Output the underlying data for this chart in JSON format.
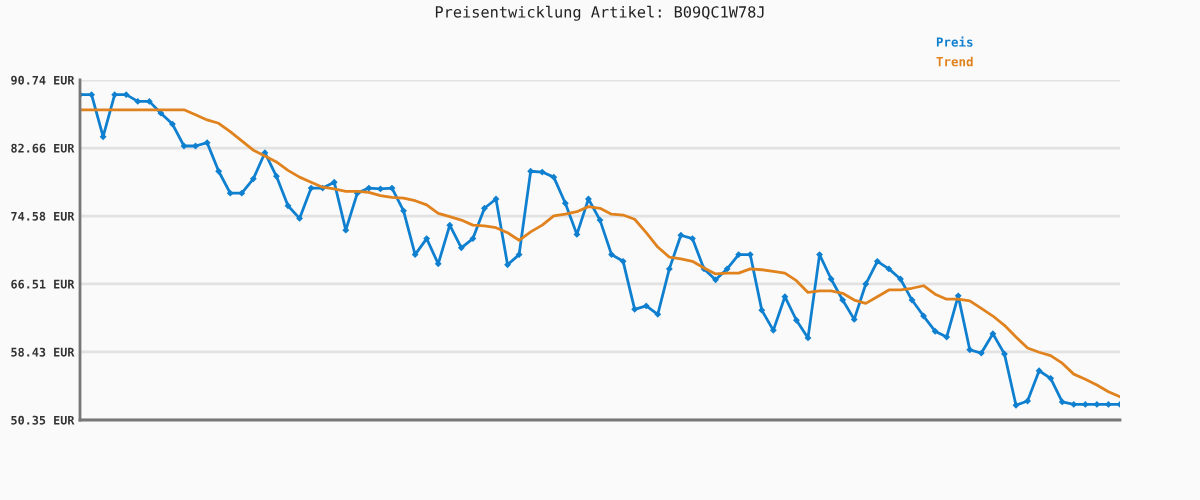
{
  "chart_data": {
    "type": "line",
    "title": "Preisentwicklung Artikel: B09QC1W78J",
    "categories": [
      null,
      null,
      null,
      null,
      null,
      null,
      null,
      null,
      null,
      null,
      null,
      null,
      null,
      null,
      null,
      null,
      null,
      null,
      null,
      null,
      null,
      null,
      null,
      null,
      null,
      null,
      null,
      null,
      null,
      null,
      null,
      null,
      null,
      null,
      null,
      null,
      null,
      null,
      null,
      null,
      null,
      null,
      null,
      null,
      null,
      null,
      null,
      null,
      null,
      null,
      null,
      null,
      null,
      null,
      null,
      null,
      null,
      null,
      null,
      null,
      null,
      null,
      null,
      null,
      null,
      null,
      null,
      null,
      null,
      null,
      null,
      null,
      null,
      null,
      null,
      null,
      null,
      null,
      null,
      null,
      null,
      null,
      null,
      null,
      null,
      null,
      null,
      null,
      null,
      null,
      null
    ],
    "series": [
      {
        "name": "Preis",
        "color": "#0f7fcf",
        "marker": "diamond",
        "values": [
          89.0,
          89.0,
          84.0,
          89.0,
          89.0,
          88.2,
          88.2,
          86.8,
          85.5,
          82.9,
          82.9,
          83.3,
          79.9,
          77.3,
          77.3,
          79.0,
          82.1,
          79.3,
          75.8,
          74.3,
          77.9,
          77.9,
          78.6,
          72.9,
          77.3,
          77.9,
          77.8,
          77.9,
          75.2,
          70.0,
          71.9,
          68.9,
          73.5,
          70.8,
          71.9,
          75.5,
          76.6,
          68.8,
          70.0,
          79.9,
          79.8,
          79.2,
          76.1,
          72.4,
          76.6,
          74.1,
          70.0,
          69.2,
          63.5,
          63.9,
          62.9,
          68.3,
          72.3,
          71.9,
          68.3,
          67.0,
          68.3,
          70.0,
          70.0,
          63.4,
          61.0,
          65.0,
          62.2,
          60.1,
          70.0,
          67.1,
          64.6,
          62.3,
          66.5,
          69.2,
          68.3,
          67.1,
          64.6,
          62.7,
          60.9,
          60.2,
          65.1,
          58.7,
          58.3,
          60.6,
          58.2,
          52.1,
          52.6,
          56.2,
          55.3,
          52.5,
          52.2,
          52.2,
          52.2,
          52.2,
          52.2
        ]
      },
      {
        "name": "Trend",
        "color": "#e0821e",
        "marker": "none",
        "values": [
          87.2,
          87.2,
          87.2,
          87.2,
          87.2,
          87.2,
          87.2,
          87.2,
          87.2,
          87.2,
          86.6,
          86.0,
          85.6,
          84.6,
          83.5,
          82.4,
          81.7,
          81.0,
          80.0,
          79.2,
          78.6,
          78.0,
          77.8,
          77.5,
          77.5,
          77.4,
          77.0,
          76.8,
          76.7,
          76.4,
          75.9,
          74.9,
          74.5,
          74.1,
          73.5,
          73.4,
          73.2,
          72.6,
          71.7,
          72.7,
          73.5,
          74.6,
          74.8,
          75.1,
          75.7,
          75.5,
          74.8,
          74.7,
          74.2,
          72.6,
          70.9,
          69.7,
          69.5,
          69.2,
          68.4,
          67.7,
          67.8,
          67.8,
          68.3,
          68.2,
          68.0,
          67.8,
          66.9,
          65.5,
          65.7,
          65.7,
          65.4,
          64.6,
          64.2,
          65.0,
          65.8,
          65.8,
          66.0,
          66.3,
          65.3,
          64.7,
          64.7,
          64.5,
          63.6,
          62.7,
          61.6,
          60.2,
          58.9,
          58.4,
          58.0,
          57.1,
          55.8,
          55.2,
          54.5,
          53.7,
          53.1
        ]
      }
    ],
    "ylim": [
      50.35,
      90.74
    ],
    "yticks": [
      {
        "value": 50.35,
        "label": "50.35 EUR"
      },
      {
        "value": 58.43,
        "label": "58.43 EUR"
      },
      {
        "value": 66.51,
        "label": "66.51 EUR"
      },
      {
        "value": 74.58,
        "label": "74.58 EUR"
      },
      {
        "value": 82.66,
        "label": "82.66 EUR"
      },
      {
        "value": 90.74,
        "label": "90.74 EUR"
      }
    ],
    "grid": "y",
    "legend": "top right",
    "line_style": "solid"
  }
}
